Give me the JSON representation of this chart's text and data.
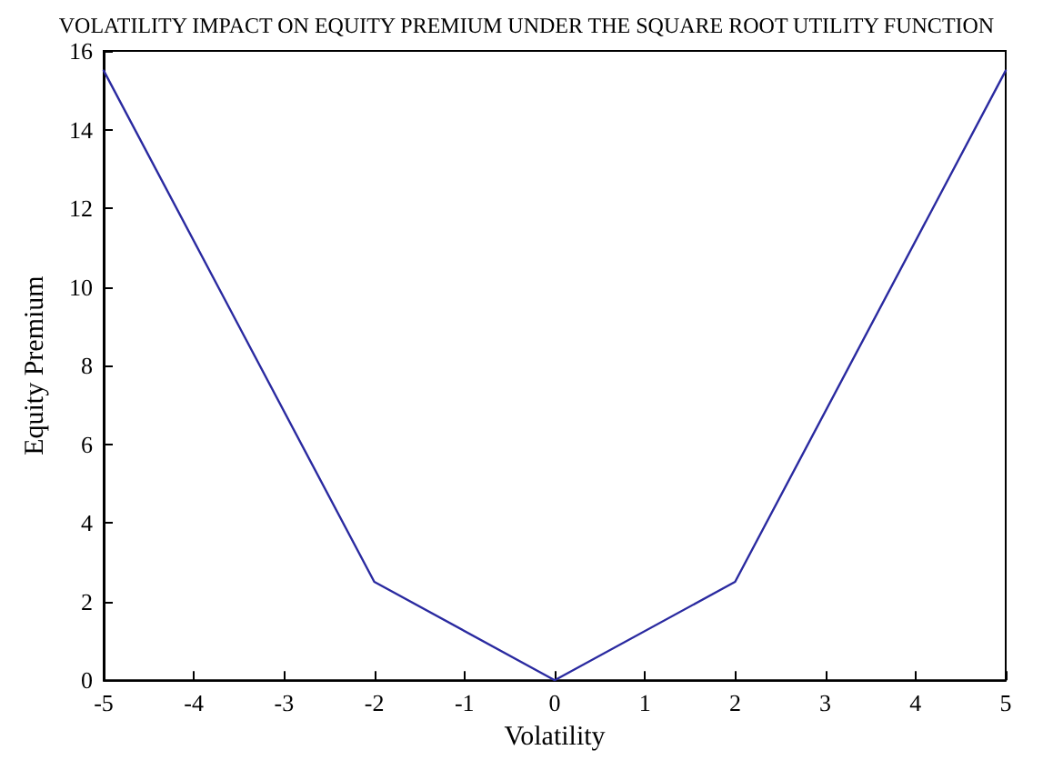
{
  "chart_data": {
    "type": "line",
    "title": "VOLATILITY IMPACT ON EQUITY PREMIUM UNDER THE SQUARE ROOT UTILITY FUNCTION",
    "xlabel": "Volatility",
    "ylabel": "Equity Premium",
    "x": [
      -5,
      -2,
      0,
      2,
      5
    ],
    "series": [
      {
        "color": "#2a2aa0",
        "values": [
          15.5,
          2.5,
          0,
          2.5,
          15.5
        ]
      }
    ],
    "xlim": [
      -5,
      5
    ],
    "xticks": [
      -5,
      -4,
      -3,
      -2,
      -1,
      0,
      1,
      2,
      3,
      4,
      5
    ],
    "ylim": [
      0,
      16
    ],
    "yticks": [
      0,
      2,
      4,
      6,
      8,
      10,
      12,
      14,
      16
    ],
    "grid": false,
    "marker": "none",
    "line_style": "solid"
  }
}
